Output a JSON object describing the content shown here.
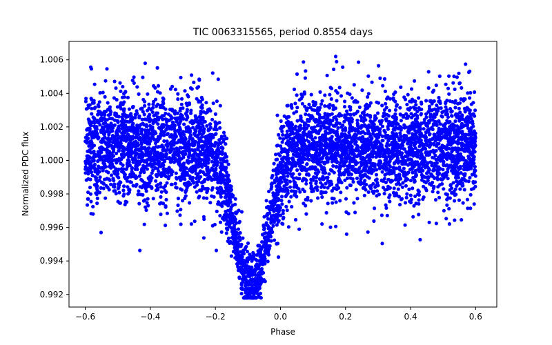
{
  "chart_data": {
    "type": "scatter",
    "title": "TIC 0063315565, period 0.8554 days",
    "xlabel": "Phase",
    "ylabel": "Normalized PDC flux",
    "xlim": [
      -0.65,
      0.665
    ],
    "ylim": [
      0.99125,
      1.0071
    ],
    "xticks": [
      -0.6,
      -0.4,
      -0.2,
      0.0,
      0.2,
      0.4,
      0.6
    ],
    "xtick_labels": [
      "−0.6",
      "−0.4",
      "−0.2",
      "0.0",
      "0.2",
      "0.4",
      "0.6"
    ],
    "yticks": [
      0.992,
      0.994,
      0.996,
      0.998,
      1.0,
      1.002,
      1.004,
      1.006
    ],
    "ytick_labels": [
      "0.992",
      "0.994",
      "0.996",
      "0.998",
      "1.000",
      "1.002",
      "1.004",
      "1.006"
    ],
    "grid": false,
    "marker_color": "#0000ff",
    "x_range": [
      -0.6,
      0.6
    ],
    "baseline_flux": 1.0008,
    "scatter_sigma": 0.0016,
    "dip": {
      "center_phase": -0.09,
      "min_flux": 0.9925,
      "phase_width": 0.075
    }
  }
}
